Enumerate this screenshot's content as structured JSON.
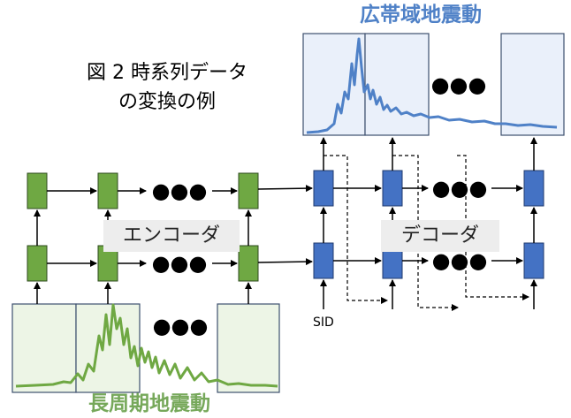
{
  "caption": {
    "line1": "図 2 時系列データ",
    "line2": "の変換の例"
  },
  "labels": {
    "encoder": "エンコーダ",
    "decoder": "デコーダ",
    "output_title": "広帯域地震動",
    "input_title": "長周期地震動",
    "sid": "SID",
    "ellipsis": "●●●"
  },
  "colors": {
    "encoder_cell": "#6fa843",
    "decoder_cell": "#4472c4",
    "output_wave": "#4f81c7",
    "input_wave": "#6fa843",
    "output_panel": "#eaf0fa",
    "input_panel": "#edf5e6",
    "label_bg": "#ededed"
  },
  "icons": {
    "ellipsis": "three-dots-icon",
    "arrow": "arrow-right-icon"
  }
}
